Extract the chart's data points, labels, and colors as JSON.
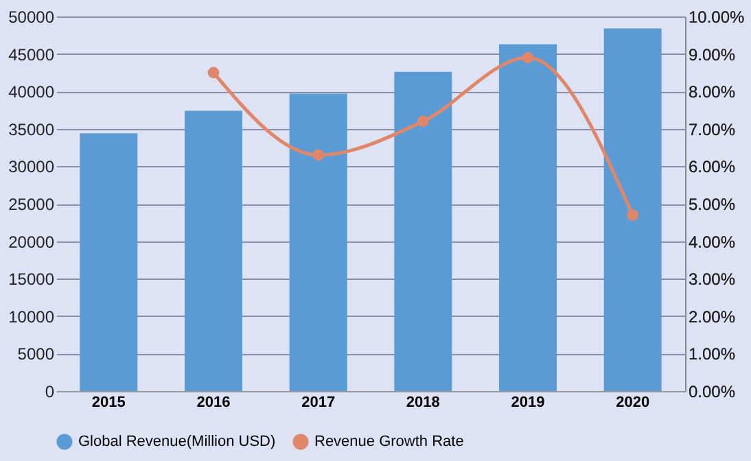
{
  "chart_data": {
    "type": "bar",
    "categories": [
      "2015",
      "2016",
      "2017",
      "2018",
      "2019",
      "2020"
    ],
    "series": [
      {
        "name": "Global Revenue(Million USD)",
        "color": "#5b9bd5",
        "values": [
          34400,
          37400,
          39700,
          42600,
          46300,
          48400
        ]
      },
      {
        "name": "Revenue Growth Rate",
        "type": "line",
        "axis": "y2",
        "color": "#e0876a",
        "marker": "circle",
        "values": [
          null,
          8.5,
          6.3,
          7.2,
          8.9,
          4.7
        ]
      }
    ],
    "ylim": [
      0,
      50000
    ],
    "yticks": [
      0,
      5000,
      10000,
      15000,
      20000,
      25000,
      30000,
      35000,
      40000,
      45000,
      50000
    ],
    "y2lim": [
      0,
      10
    ],
    "y2ticks": [
      {
        "value": 0,
        "label": "0.00%"
      },
      {
        "value": 1,
        "label": "1.00%"
      },
      {
        "value": 2,
        "label": "2.00%"
      },
      {
        "value": 3,
        "label": "3.00%"
      },
      {
        "value": 4,
        "label": "4.00%"
      },
      {
        "value": 5,
        "label": "5.00%"
      },
      {
        "value": 6,
        "label": "6.00%"
      },
      {
        "value": 7,
        "label": "7.00%"
      },
      {
        "value": 8,
        "label": "8.00%"
      },
      {
        "value": 9,
        "label": "9.00%"
      },
      {
        "value": 10,
        "label": "10.00%"
      }
    ],
    "grid": "y",
    "legend": "bottom"
  }
}
